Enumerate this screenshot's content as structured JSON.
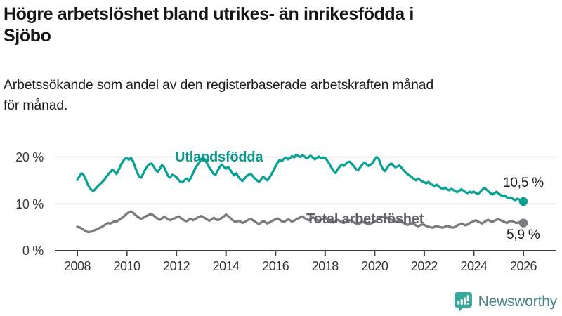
{
  "header": {
    "title": "Högre arbetslöshet bland utrikes- än inrikesfödda i Sjöbo",
    "title_lines": [
      "Högre arbetslöshet bland utrikes- än inrikesfödda i",
      "Sjöbo"
    ],
    "subtitle": "Arbetssökande som andel av den registerbaserade arbetskraften månad för månad.",
    "subtitle_lines": [
      "Arbetssökande som andel av den registerbaserade arbetskraften månad",
      "för månad."
    ]
  },
  "chart": {
    "y_axis": {
      "labels": [
        "20 %",
        "10 %",
        "0 %"
      ]
    },
    "colors": {
      "grid": "#e2e2e2",
      "axis": "#3f3f3f",
      "teal": "#0ba295",
      "gray": "#7b7b7f"
    }
  },
  "chart_data": {
    "type": "line",
    "title": "Högre arbetslöshet bland utrikes- än inrikesfödda i Sjöbo",
    "subtitle": "Arbetssökande som andel av den registerbaserade arbetskraften månad för månad.",
    "unit": "%",
    "x_start_year": 2008,
    "x_step_months": 1,
    "x_ticks": [
      2008,
      2010,
      2012,
      2014,
      2016,
      2018,
      2020,
      2022,
      2024,
      2026
    ],
    "ylim": [
      0,
      22
    ],
    "y_gridlines": [
      10,
      20
    ],
    "legend_position": "inline-labels",
    "series": [
      {
        "name": "Utlandsfödda",
        "color": "#0ba295",
        "label_color": "#0a9a8e",
        "end_label": "10,5 %",
        "end_value": 10.5,
        "values": [
          15.1,
          15.8,
          16.5,
          16.2,
          15.3,
          14.2,
          13.4,
          12.9,
          12.8,
          13.3,
          13.8,
          14.2,
          14.6,
          15.1,
          15.7,
          16.3,
          16.8,
          17.3,
          16.9,
          16.4,
          17.2,
          18.2,
          19.0,
          19.6,
          19.8,
          19.4,
          19.8,
          19.1,
          17.9,
          16.7,
          15.8,
          15.6,
          16.5,
          17.4,
          18.1,
          18.5,
          18.6,
          18.0,
          17.2,
          16.8,
          17.5,
          18.3,
          17.9,
          16.9,
          15.9,
          15.6,
          16.2,
          16.0,
          15.7,
          15.1,
          14.7,
          14.6,
          15.1,
          15.4,
          14.9,
          15.5,
          16.5,
          17.5,
          18.2,
          18.8,
          19.6,
          19.9,
          19.3,
          18.5,
          17.7,
          17.1,
          16.4,
          16.2,
          17.1,
          17.9,
          18.4,
          17.9,
          17.5,
          17.9,
          17.3,
          16.6,
          16.1,
          16.5,
          15.8,
          15.2,
          14.9,
          15.4,
          15.9,
          16.2,
          16.4,
          15.9,
          15.4,
          15.0,
          14.7,
          15.2,
          15.8,
          15.4,
          15.0,
          15.6,
          16.3,
          17.1,
          18.0,
          18.8,
          19.4,
          19.1,
          19.6,
          19.9,
          19.5,
          19.8,
          20.2,
          19.9,
          20.5,
          20.2,
          20.0,
          20.4,
          20.1,
          19.7,
          20.0,
          20.3,
          19.9,
          19.5,
          19.8,
          20.1,
          19.7,
          19.9,
          19.8,
          19.3,
          18.6,
          17.8,
          17.1,
          16.6,
          17.3,
          17.9,
          18.4,
          18.1,
          18.5,
          18.9,
          19.0,
          18.5,
          18.0,
          17.4,
          17.2,
          17.8,
          18.4,
          18.8,
          18.5,
          18.1,
          18.4,
          18.7,
          19.5,
          20.0,
          19.6,
          18.3,
          17.4,
          17.0,
          17.7,
          18.3,
          18.6,
          18.2,
          17.8,
          18.0,
          18.2,
          17.7,
          17.2,
          16.7,
          16.3,
          16.0,
          15.7,
          15.3,
          15.0,
          15.4,
          15.1,
          14.8,
          14.6,
          14.4,
          14.7,
          14.3,
          14.0,
          13.8,
          14.1,
          13.7,
          13.4,
          13.2,
          13.5,
          13.1,
          12.9,
          13.2,
          13.0,
          12.7,
          12.5,
          12.8,
          13.1,
          12.8,
          12.5,
          12.3,
          12.6,
          12.4,
          12.6,
          12.3,
          12.1,
          12.5,
          13.0,
          13.4,
          13.1,
          12.7,
          12.3,
          12.0,
          12.3,
          12.6,
          12.2,
          11.9,
          11.6,
          11.8,
          11.4,
          11.2,
          11.4,
          11.0,
          10.8,
          11.1,
          10.9,
          10.7,
          10.5
        ]
      },
      {
        "name": "Total arbetslöshet",
        "color": "#7b7b7f",
        "label_color": "#636367",
        "end_label": "5,9 %",
        "end_value": 5.9,
        "values": [
          5.1,
          5.0,
          4.8,
          4.5,
          4.2,
          4.0,
          4.0,
          4.1,
          4.3,
          4.5,
          4.7,
          4.9,
          5.1,
          5.4,
          5.7,
          5.9,
          5.8,
          6.0,
          6.3,
          6.2,
          6.5,
          6.8,
          7.1,
          7.5,
          7.9,
          8.2,
          8.4,
          8.1,
          7.7,
          7.3,
          7.0,
          6.8,
          7.0,
          7.3,
          7.5,
          7.7,
          7.8,
          7.5,
          7.1,
          6.8,
          6.6,
          6.9,
          7.2,
          7.0,
          6.7,
          6.5,
          6.7,
          6.9,
          7.1,
          7.3,
          7.0,
          6.7,
          6.4,
          6.3,
          6.6,
          6.8,
          6.5,
          6.7,
          7.0,
          7.2,
          7.4,
          7.2,
          6.9,
          6.6,
          6.4,
          6.7,
          7.0,
          6.8,
          6.5,
          6.7,
          7.0,
          7.3,
          7.7,
          7.4,
          7.0,
          6.6,
          6.3,
          6.1,
          6.4,
          6.2,
          5.9,
          6.1,
          6.4,
          6.6,
          6.8,
          6.5,
          6.2,
          5.9,
          5.7,
          6.0,
          6.3,
          6.1,
          5.8,
          6.0,
          6.3,
          6.5,
          6.7,
          6.9,
          6.6,
          6.3,
          6.1,
          6.4,
          6.7,
          6.5,
          6.2,
          6.4,
          6.7,
          6.9,
          7.1,
          7.3,
          7.0,
          6.7,
          6.5,
          6.8,
          7.1,
          6.9,
          6.6,
          6.4,
          6.6,
          6.8,
          7.0,
          6.8,
          6.5,
          6.2,
          6.0,
          6.3,
          6.6,
          6.4,
          6.1,
          5.9,
          6.1,
          6.3,
          6.5,
          6.3,
          6.0,
          5.8,
          5.6,
          5.9,
          6.2,
          6.0,
          5.8,
          5.6,
          5.8,
          6.0,
          6.2,
          6.5,
          6.8,
          7.1,
          7.3,
          7.2,
          7.0,
          6.8,
          6.6,
          6.4,
          6.2,
          6.1,
          6.3,
          6.1,
          5.9,
          5.7,
          5.5,
          5.7,
          5.9,
          5.7,
          5.4,
          5.2,
          5.4,
          5.6,
          5.5,
          5.3,
          5.1,
          5.0,
          4.9,
          5.1,
          5.3,
          5.1,
          5.0,
          4.9,
          5.1,
          5.3,
          5.2,
          5.0,
          4.9,
          5.1,
          5.4,
          5.6,
          5.8,
          5.6,
          5.4,
          5.6,
          5.9,
          6.1,
          6.3,
          6.5,
          6.2,
          6.0,
          5.8,
          6.1,
          6.4,
          6.6,
          6.3,
          6.1,
          6.4,
          6.6,
          6.7,
          6.5,
          6.3,
          6.1,
          5.9,
          6.2,
          6.4,
          6.2,
          6.0,
          5.9,
          6.1,
          6.2,
          5.9
        ]
      }
    ]
  },
  "footer": {
    "brand": "Newsworthy"
  }
}
